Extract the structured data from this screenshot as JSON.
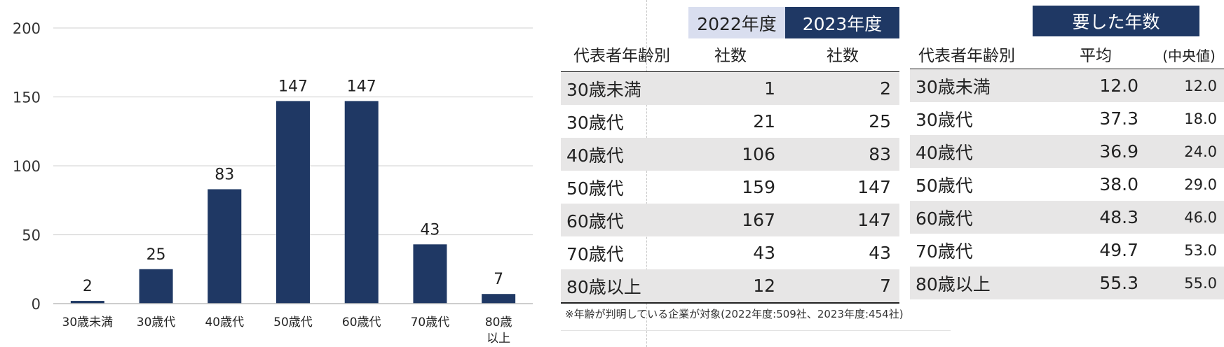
{
  "chart_data": {
    "type": "bar",
    "categories": [
      "30歳未満",
      "30歳代",
      "40歳代",
      "50歳代",
      "60歳代",
      "70歳代",
      "80歳以上"
    ],
    "category_lines": [
      [
        "30歳未満"
      ],
      [
        "30歳代"
      ],
      [
        "40歳代"
      ],
      [
        "50歳代"
      ],
      [
        "60歳代"
      ],
      [
        "70歳代"
      ],
      [
        "80歳",
        "以上"
      ]
    ],
    "values": [
      2,
      25,
      83,
      147,
      147,
      43,
      7
    ],
    "ylim": [
      0,
      200
    ],
    "yticks": [
      0,
      50,
      100,
      150,
      200
    ],
    "grid": true,
    "bar_color": "#1f3864",
    "grid_color": "#d9d9d9"
  },
  "table1": {
    "year_headers": [
      "2022年度",
      "2023年度"
    ],
    "columns": [
      "代表者年齢別",
      "社数",
      "社数"
    ],
    "rows": [
      {
        "age": "30歳未満",
        "y2022": "1",
        "y2023": "2"
      },
      {
        "age": "30歳代",
        "y2022": "21",
        "y2023": "25"
      },
      {
        "age": "40歳代",
        "y2022": "106",
        "y2023": "83"
      },
      {
        "age": "50歳代",
        "y2022": "159",
        "y2023": "147"
      },
      {
        "age": "60歳代",
        "y2022": "167",
        "y2023": "147"
      },
      {
        "age": "70歳代",
        "y2022": "43",
        "y2023": "43"
      },
      {
        "age": "80歳以上",
        "y2022": "12",
        "y2023": "7"
      }
    ]
  },
  "table2": {
    "header": "要した年数",
    "columns": [
      "代表者年齢別",
      "平均",
      "(中央値)"
    ],
    "rows": [
      {
        "age": "30歳未満",
        "mean": "12.0",
        "median": "12.0"
      },
      {
        "age": "30歳代",
        "mean": "37.3",
        "median": "18.0"
      },
      {
        "age": "40歳代",
        "mean": "36.9",
        "median": "24.0"
      },
      {
        "age": "50歳代",
        "mean": "38.0",
        "median": "29.0"
      },
      {
        "age": "60歳代",
        "mean": "48.3",
        "median": "46.0"
      },
      {
        "age": "70歳代",
        "mean": "49.7",
        "median": "53.0"
      },
      {
        "age": "80歳以上",
        "mean": "55.3",
        "median": "55.0"
      }
    ]
  },
  "note": "※年齢が判明している企業が対象(2022年度:509社、2023年度:454社)",
  "colors": {
    "navy": "#1f3864",
    "light_blue": "#d9deef",
    "shade": "#e7e6e6"
  }
}
